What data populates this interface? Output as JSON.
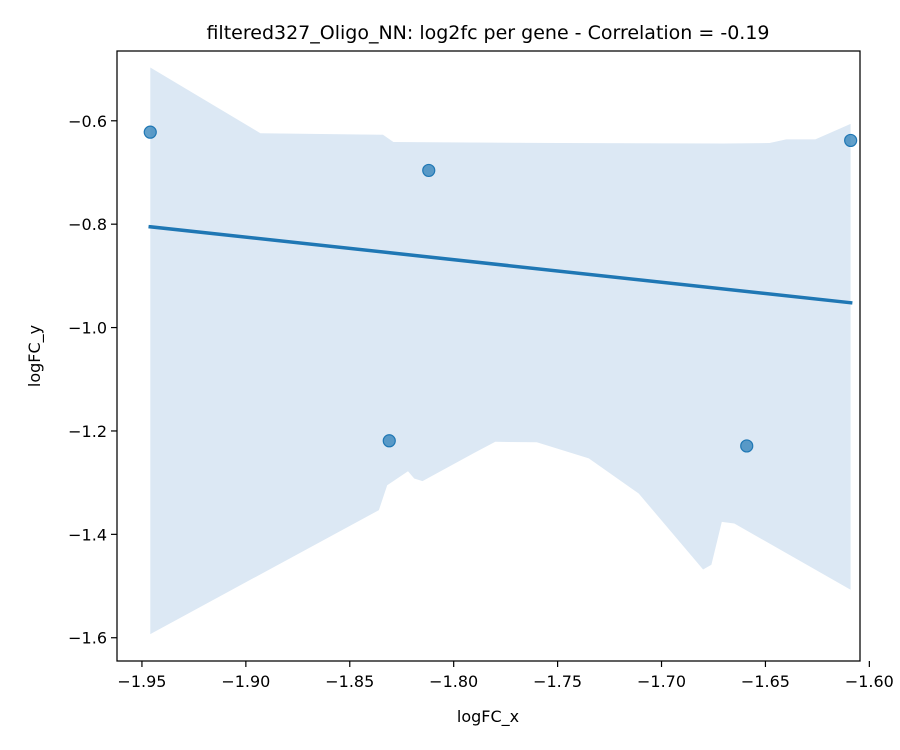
{
  "chart_data": {
    "type": "scatter",
    "title": "filtered327_Oligo_NN: log2fc per gene - Correlation = -0.19",
    "xlabel": "logFC_x",
    "ylabel": "logFC_y",
    "xlim": [
      -1.962,
      -1.6045
    ],
    "ylim": [
      -1.645,
      -0.465
    ],
    "xticks": [
      -1.95,
      -1.9,
      -1.85,
      -1.8,
      -1.75,
      -1.7,
      -1.65,
      -1.6
    ],
    "xtick_labels": [
      "−1.95",
      "−1.90",
      "−1.85",
      "−1.80",
      "−1.75",
      "−1.70",
      "−1.65",
      "−1.60"
    ],
    "yticks": [
      -1.6,
      -1.4,
      -1.2,
      -1.0,
      -0.8,
      -0.6
    ],
    "ytick_labels": [
      "−1.6",
      "−1.4",
      "−1.2",
      "−1.0",
      "−0.8",
      "−0.6"
    ],
    "grid": false,
    "points": [
      {
        "x": -1.946,
        "y": -0.622
      },
      {
        "x": -1.831,
        "y": -1.219
      },
      {
        "x": -1.812,
        "y": -0.696
      },
      {
        "x": -1.659,
        "y": -1.229
      },
      {
        "x": -1.609,
        "y": -0.638
      }
    ],
    "regression_line": {
      "x": [
        -1.946,
        -1.609
      ],
      "y": [
        -0.805,
        -0.952
      ]
    },
    "confidence_band": {
      "upper": [
        [
          -1.946,
          -0.497
        ],
        [
          -1.893,
          -0.624
        ],
        [
          -1.834,
          -0.627
        ],
        [
          -1.829,
          -0.641
        ],
        [
          -1.75,
          -0.643
        ],
        [
          -1.67,
          -0.644
        ],
        [
          -1.648,
          -0.643
        ],
        [
          -1.64,
          -0.636
        ],
        [
          -1.626,
          -0.636
        ],
        [
          -1.609,
          -0.606
        ]
      ],
      "lower": [
        [
          -1.946,
          -1.593
        ],
        [
          -1.836,
          -1.353
        ],
        [
          -1.832,
          -1.305
        ],
        [
          -1.822,
          -1.278
        ],
        [
          -1.819,
          -1.292
        ],
        [
          -1.815,
          -1.297
        ],
        [
          -1.79,
          -1.242
        ],
        [
          -1.78,
          -1.221
        ],
        [
          -1.76,
          -1.222
        ],
        [
          -1.735,
          -1.253
        ],
        [
          -1.711,
          -1.321
        ],
        [
          -1.68,
          -1.468
        ],
        [
          -1.676,
          -1.459
        ],
        [
          -1.671,
          -1.376
        ],
        [
          -1.665,
          -1.379
        ],
        [
          -1.609,
          -1.507
        ]
      ]
    },
    "colors": {
      "points": "#1f77b4",
      "line": "#1f77b4",
      "band": "#dce8f4",
      "axes": "#000000"
    }
  }
}
